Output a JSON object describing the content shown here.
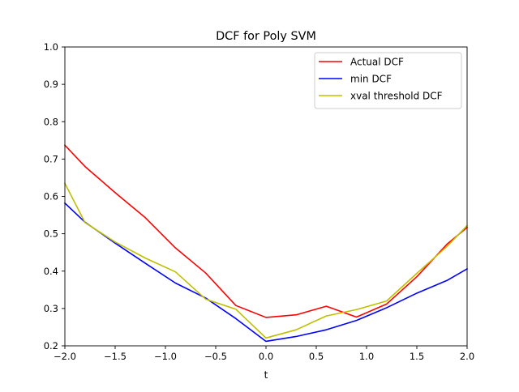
{
  "chart_data": {
    "type": "line",
    "title": "DCF for Poly SVM",
    "xlabel": "t",
    "ylabel": "",
    "xlim": [
      -2.0,
      2.0
    ],
    "ylim": [
      0.2,
      1.0
    ],
    "grid": false,
    "legend_position": "top-right",
    "x_ticks": [
      "−2.0",
      "−1.5",
      "−1.0",
      "−0.5",
      "0.0",
      "0.5",
      "1.0",
      "1.5",
      "2.0"
    ],
    "x_tick_values": [
      -2.0,
      -1.5,
      -1.0,
      -0.5,
      0.0,
      0.5,
      1.0,
      1.5,
      2.0
    ],
    "y_ticks": [
      "0.2",
      "0.3",
      "0.4",
      "0.5",
      "0.6",
      "0.7",
      "0.8",
      "0.9",
      "1.0"
    ],
    "y_tick_values": [
      0.2,
      0.3,
      0.4,
      0.5,
      0.6,
      0.7,
      0.8,
      0.9,
      1.0
    ],
    "x": [
      -2.0,
      -1.8,
      -1.5,
      -1.2,
      -0.9,
      -0.6,
      -0.3,
      0.0,
      0.3,
      0.6,
      0.9,
      1.2,
      1.5,
      1.8,
      2.0
    ],
    "series": [
      {
        "name": "Actual DCF",
        "color": "#ff0000",
        "values": [
          0.737,
          0.68,
          0.61,
          0.543,
          0.462,
          0.395,
          0.308,
          0.276,
          0.283,
          0.306,
          0.277,
          0.312,
          0.385,
          0.472,
          0.517
        ]
      },
      {
        "name": "min DCF",
        "color": "#0000ff",
        "values": [
          0.582,
          0.531,
          0.475,
          0.421,
          0.368,
          0.328,
          0.273,
          0.212,
          0.225,
          0.243,
          0.268,
          0.302,
          0.341,
          0.375,
          0.406
        ]
      },
      {
        "name": "xval threshold DCF",
        "color": "#bfbf00",
        "values": [
          0.635,
          0.53,
          0.478,
          0.435,
          0.398,
          0.325,
          0.298,
          0.221,
          0.243,
          0.28,
          0.297,
          0.32,
          0.394,
          0.466,
          0.522
        ]
      }
    ]
  }
}
